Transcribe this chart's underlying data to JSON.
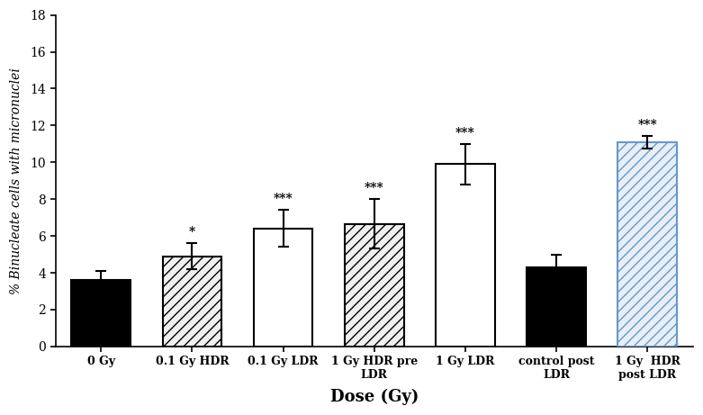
{
  "categories": [
    "0 Gy",
    "0.1 Gy HDR",
    "0.1 Gy LDR",
    "1 Gy HDR pre\nLDR",
    "1 Gy LDR",
    "control post\nLDR",
    "1 Gy  HDR\npost LDR"
  ],
  "values": [
    3.6,
    4.9,
    6.4,
    6.65,
    9.9,
    4.3,
    11.1
  ],
  "errors": [
    0.5,
    0.7,
    1.0,
    1.35,
    1.1,
    0.7,
    0.35
  ],
  "significance": [
    "",
    "*",
    "***",
    "***",
    "***",
    "",
    "***"
  ],
  "ylabel": "% Binucleate cells with micronuclei",
  "xlabel": "Dose (Gy)",
  "ylim": [
    0,
    18
  ],
  "yticks": [
    0,
    2,
    4,
    6,
    8,
    10,
    12,
    14,
    16,
    18
  ],
  "bar_colors": [
    "#000000",
    "#f0f0f0",
    "#ffffff",
    "#f0f0f0",
    "#ffffff",
    "#000000",
    "#e8eef5"
  ],
  "edge_colors": [
    "#000000",
    "#000000",
    "#000000",
    "#000000",
    "#000000",
    "#000000",
    "#6699cc"
  ],
  "hatch_patterns": [
    "",
    "///",
    "",
    "///",
    "",
    "",
    "///"
  ],
  "background_color": "#ffffff"
}
